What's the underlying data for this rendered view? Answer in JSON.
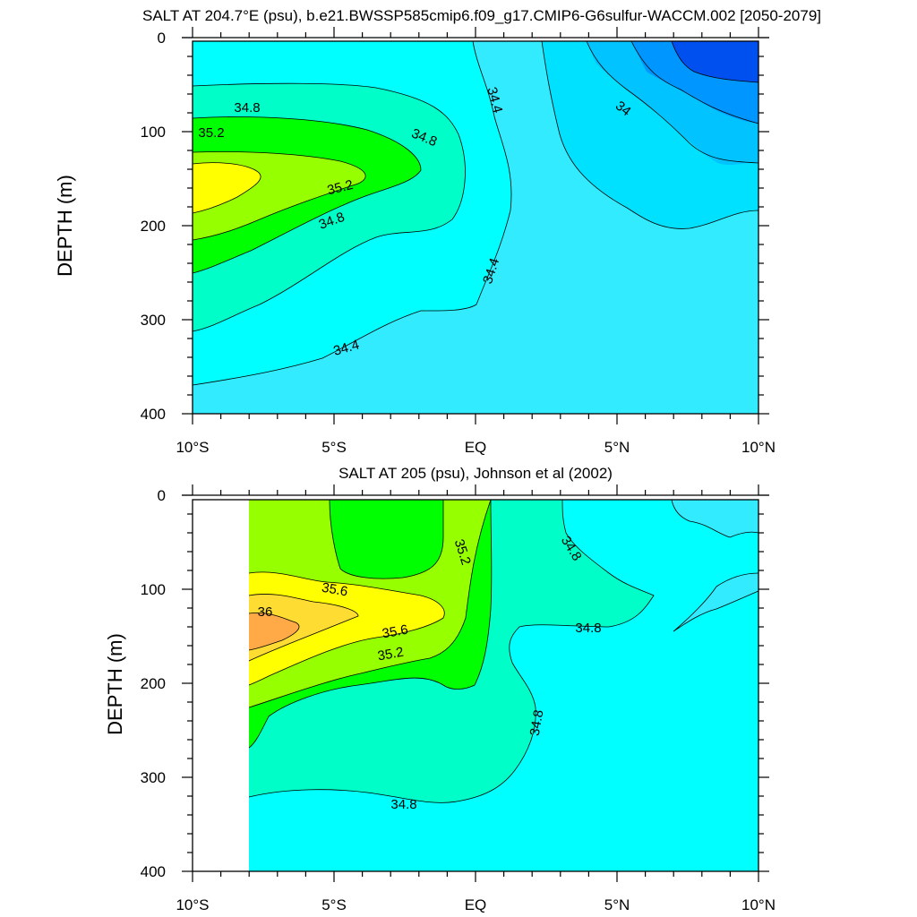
{
  "colors": {
    "s33_8": "#0050f0",
    "s34_0": "#0096ff",
    "s34_2": "#00c3ff",
    "s34_4": "#00e1ff",
    "s34_6": "#33ebff",
    "s34_8": "#00ffff",
    "s35_0": "#00ffc8",
    "s35_2": "#00ff00",
    "s35_4": "#96ff00",
    "s35_6": "#ffff00",
    "s35_8": "#ffdc32",
    "s36_0": "#ffaa46"
  },
  "chart_data": [
    {
      "type": "contour",
      "title": "SALT AT 204.7°E (psu), b.e21.BWSSP585cmip6.f09_g17.CMIP6-G6sulfur-WACCM.002 [2050-2079]",
      "ylabel": "DEPTH (m)",
      "xlabel": "",
      "xlim": [
        -10,
        10
      ],
      "ylim": [
        400,
        0
      ],
      "x_ticks": [
        -10,
        -5,
        0,
        5,
        10
      ],
      "x_tick_labels": [
        "10°S",
        "5°S",
        "EQ",
        "5°N",
        "10°N"
      ],
      "y_ticks": [
        0,
        100,
        200,
        300,
        400
      ],
      "y_tick_labels": [
        "0",
        "100",
        "200",
        "300",
        "400"
      ],
      "contour_labels": [
        "34.8",
        "35.2",
        "34.8",
        "35.2",
        "34.8",
        "34.4",
        "34.4",
        "34.4",
        "34"
      ],
      "levels": [
        34.0,
        34.4,
        34.8,
        35.2
      ],
      "salinity_max_psu": 35.6,
      "salinity_max_location": {
        "lat": -10,
        "depth_m": 150
      }
    },
    {
      "type": "contour",
      "title": "SALT AT 205 (psu), Johnson et al (2002)",
      "ylabel": "DEPTH (m)",
      "xlabel": "",
      "xlim": [
        -10,
        10
      ],
      "ylim": [
        400,
        0
      ],
      "x_ticks": [
        -10,
        -5,
        0,
        5,
        10
      ],
      "x_tick_labels": [
        "10°S",
        "5°S",
        "EQ",
        "5°N",
        "10°N"
      ],
      "y_ticks": [
        0,
        100,
        200,
        300,
        400
      ],
      "y_tick_labels": [
        "0",
        "100",
        "200",
        "300",
        "400"
      ],
      "contour_labels": [
        "35.6",
        "36",
        "35.6",
        "35.2",
        "35.2",
        "34.8",
        "34.8",
        "34.8",
        "34.8"
      ],
      "levels": [
        34.8,
        35.2,
        35.6,
        36.0
      ],
      "data_start_lat": -8,
      "salinity_max_psu": 36.0,
      "salinity_max_location": {
        "lat": -8,
        "depth_m": 145
      }
    }
  ]
}
